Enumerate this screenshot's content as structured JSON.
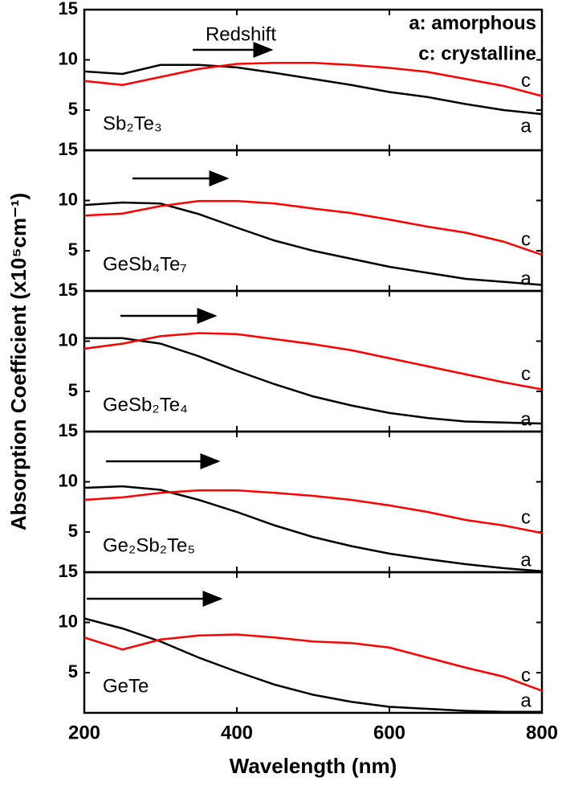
{
  "xlabel": "Wavelength (nm)",
  "ylabel": "Absorption Coefficient (x10⁵cm⁻¹)",
  "chart_data": [
    {
      "type": "line",
      "label": "Sb₂Te₃",
      "annotation": "Redshift",
      "legend_labels": [
        "a: amorphous",
        "c: crystalline"
      ],
      "x": [
        200,
        250,
        300,
        350,
        400,
        450,
        500,
        550,
        600,
        650,
        700,
        750,
        800
      ],
      "xlim": [
        200,
        800
      ],
      "ylim": [
        1,
        15
      ],
      "yticks": [
        5,
        10,
        15
      ],
      "series": [
        {
          "name": "a",
          "color": "#000000",
          "values": [
            8.85,
            8.6,
            9.5,
            9.5,
            9.25,
            8.7,
            8.1,
            7.5,
            6.8,
            6.3,
            5.6,
            5.0,
            4.6
          ]
        },
        {
          "name": "c",
          "color": "#ff0000",
          "values": [
            7.9,
            7.5,
            8.3,
            9.1,
            9.6,
            9.7,
            9.7,
            9.5,
            9.2,
            8.8,
            8.1,
            7.4,
            6.4
          ]
        }
      ]
    },
    {
      "type": "line",
      "label": "GeSb₄Te₇",
      "x": [
        200,
        250,
        300,
        350,
        400,
        450,
        500,
        550,
        600,
        650,
        700,
        750,
        800
      ],
      "xlim": [
        200,
        800
      ],
      "ylim": [
        1,
        15
      ],
      "yticks": [
        5,
        10,
        15
      ],
      "series": [
        {
          "name": "a",
          "color": "#000000",
          "values": [
            9.55,
            9.8,
            9.7,
            8.65,
            7.3,
            6.0,
            5.0,
            4.2,
            3.4,
            2.8,
            2.2,
            1.9,
            1.6
          ]
        },
        {
          "name": "c",
          "color": "#ff0000",
          "values": [
            8.5,
            8.7,
            9.45,
            9.95,
            9.95,
            9.7,
            9.2,
            8.75,
            8.1,
            7.4,
            6.8,
            5.9,
            4.6
          ]
        }
      ]
    },
    {
      "type": "line",
      "label": "GeSb₂Te₄",
      "x": [
        200,
        250,
        300,
        350,
        400,
        450,
        500,
        550,
        600,
        650,
        700,
        750,
        800
      ],
      "xlim": [
        200,
        800
      ],
      "ylim": [
        1,
        15
      ],
      "yticks": [
        5,
        10,
        15
      ],
      "series": [
        {
          "name": "a",
          "color": "#000000",
          "values": [
            10.3,
            10.3,
            9.75,
            8.5,
            7.05,
            5.7,
            4.5,
            3.6,
            2.85,
            2.35,
            2.0,
            1.9,
            1.8
          ]
        },
        {
          "name": "c",
          "color": "#ff0000",
          "values": [
            9.25,
            9.75,
            10.5,
            10.8,
            10.7,
            10.2,
            9.7,
            9.1,
            8.3,
            7.5,
            6.7,
            5.9,
            5.2
          ]
        }
      ]
    },
    {
      "type": "line",
      "label": "Ge₂Sb₂Te₅",
      "x": [
        200,
        250,
        300,
        350,
        400,
        450,
        500,
        550,
        600,
        650,
        700,
        750,
        800
      ],
      "xlim": [
        200,
        800
      ],
      "ylim": [
        1,
        15
      ],
      "yticks": [
        5,
        10,
        15
      ],
      "series": [
        {
          "name": "a",
          "color": "#000000",
          "values": [
            9.4,
            9.55,
            9.2,
            8.2,
            7.0,
            5.65,
            4.5,
            3.6,
            2.85,
            2.3,
            1.8,
            1.4,
            1.1
          ]
        },
        {
          "name": "c",
          "color": "#ff0000",
          "values": [
            8.2,
            8.45,
            8.9,
            9.15,
            9.15,
            8.9,
            8.6,
            8.2,
            7.65,
            7.0,
            6.2,
            5.65,
            4.9
          ]
        }
      ]
    },
    {
      "type": "line",
      "label": "GeTe",
      "x": [
        200,
        250,
        300,
        350,
        400,
        450,
        500,
        550,
        600,
        650,
        700,
        750,
        800
      ],
      "xlim": [
        200,
        800
      ],
      "ylim": [
        1,
        15
      ],
      "yticks": [
        5,
        10,
        15
      ],
      "xticks": [
        200,
        400,
        600,
        800
      ],
      "series": [
        {
          "name": "a",
          "color": "#000000",
          "values": [
            10.4,
            9.4,
            8.1,
            6.5,
            5.1,
            3.8,
            2.8,
            2.1,
            1.6,
            1.4,
            1.2,
            1.1,
            1.1
          ]
        },
        {
          "name": "c",
          "color": "#ff0000",
          "values": [
            8.5,
            7.3,
            8.3,
            8.7,
            8.8,
            8.5,
            8.1,
            7.95,
            7.5,
            6.5,
            5.5,
            4.6,
            3.2
          ]
        }
      ]
    }
  ]
}
